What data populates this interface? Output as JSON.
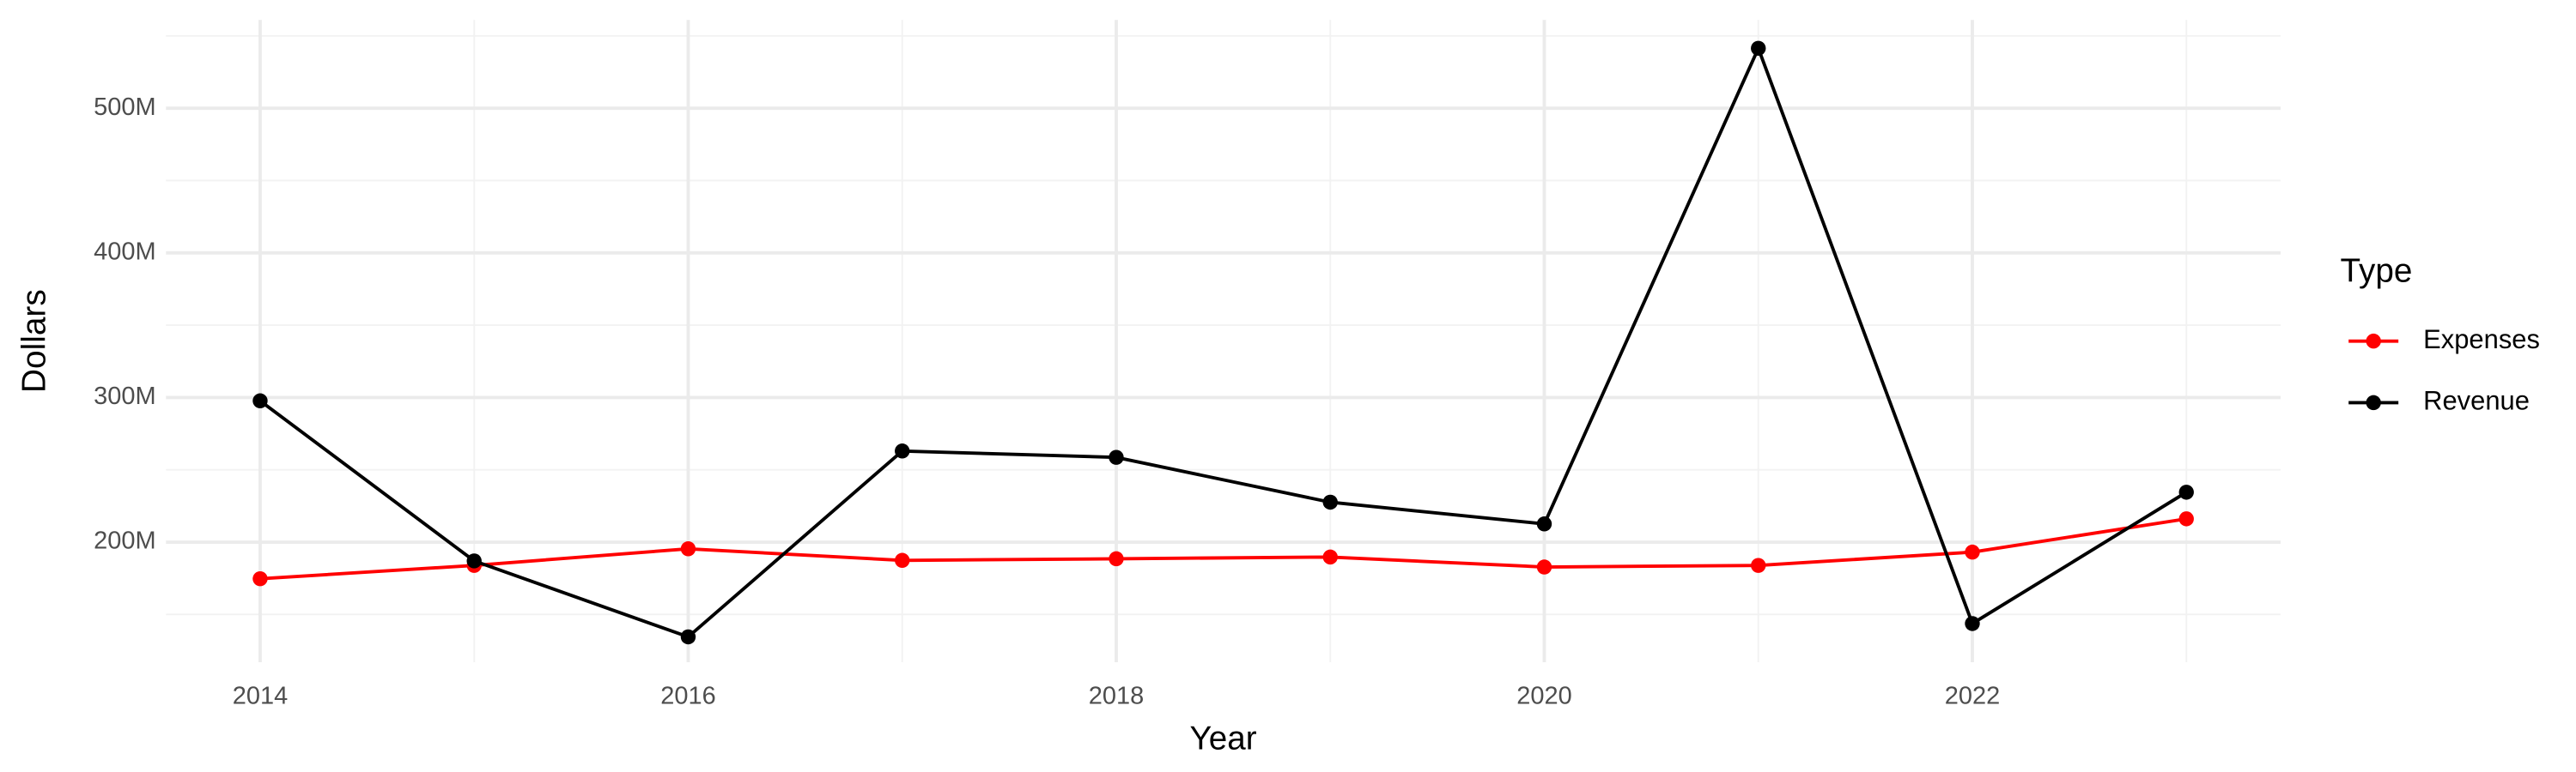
{
  "chart_data": {
    "type": "line",
    "x_label": "Year",
    "y_label": "Dollars",
    "legend_title": "Type",
    "x": [
      2014,
      2015,
      2016,
      2017,
      2018,
      2019,
      2020,
      2021,
      2022,
      2023
    ],
    "series": [
      {
        "name": "Expenses",
        "color": "#ff0000",
        "values": [
          174700000,
          183900000,
          195400000,
          187400000,
          188500000,
          189700000,
          182800000,
          183900000,
          193100000,
          216100000
        ]
      },
      {
        "name": "Revenue",
        "color": "#000000",
        "values": [
          297700000,
          187000000,
          134500000,
          263000000,
          258600000,
          227600000,
          212600000,
          541400000,
          143700000,
          234500000
        ]
      }
    ],
    "xlim": [
      2013.56,
      2023.44
    ],
    "xticks": [
      2014,
      2016,
      2018,
      2020,
      2022
    ],
    "ylim": [
      117000000,
      561000000
    ],
    "yticks": [
      {
        "value": 200000000,
        "label": "200M"
      },
      {
        "value": 300000000,
        "label": "300M"
      },
      {
        "value": 400000000,
        "label": "400M"
      },
      {
        "value": 500000000,
        "label": "500M"
      }
    ],
    "grid": true,
    "legend_position": "right"
  }
}
